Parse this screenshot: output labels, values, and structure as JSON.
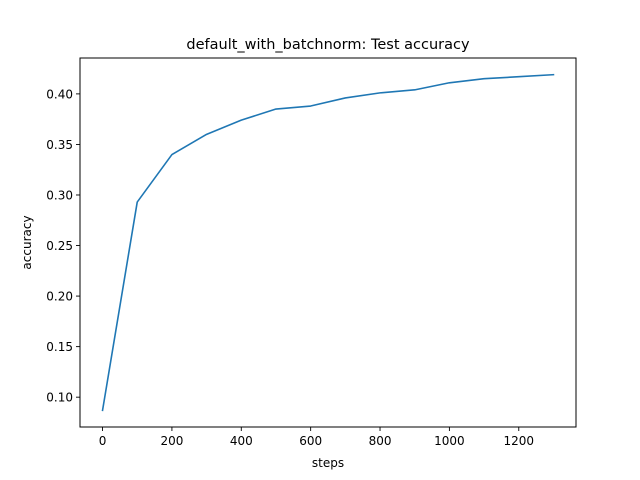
{
  "chart_data": {
    "type": "line",
    "title": "default_with_batchnorm: Test accuracy",
    "xlabel": "steps",
    "ylabel": "accuracy",
    "xlim": [
      -65,
      1365
    ],
    "ylim": [
      0.0705,
      0.4355
    ],
    "x_ticks": [
      0,
      200,
      400,
      600,
      800,
      1000,
      1200
    ],
    "y_ticks": [
      0.1,
      0.15,
      0.2,
      0.25,
      0.3,
      0.35,
      0.4
    ],
    "y_tick_labels": [
      "0.10",
      "0.15",
      "0.20",
      "0.25",
      "0.30",
      "0.35",
      "0.40"
    ],
    "grid": false,
    "series": [
      {
        "color": "#1f77b4",
        "x": [
          0,
          100,
          200,
          300,
          400,
          500,
          600,
          700,
          800,
          900,
          1000,
          1100,
          1200,
          1300
        ],
        "y": [
          0.087,
          0.293,
          0.34,
          0.36,
          0.374,
          0.385,
          0.388,
          0.396,
          0.401,
          0.404,
          0.411,
          0.415,
          0.417,
          0.419
        ]
      }
    ]
  }
}
